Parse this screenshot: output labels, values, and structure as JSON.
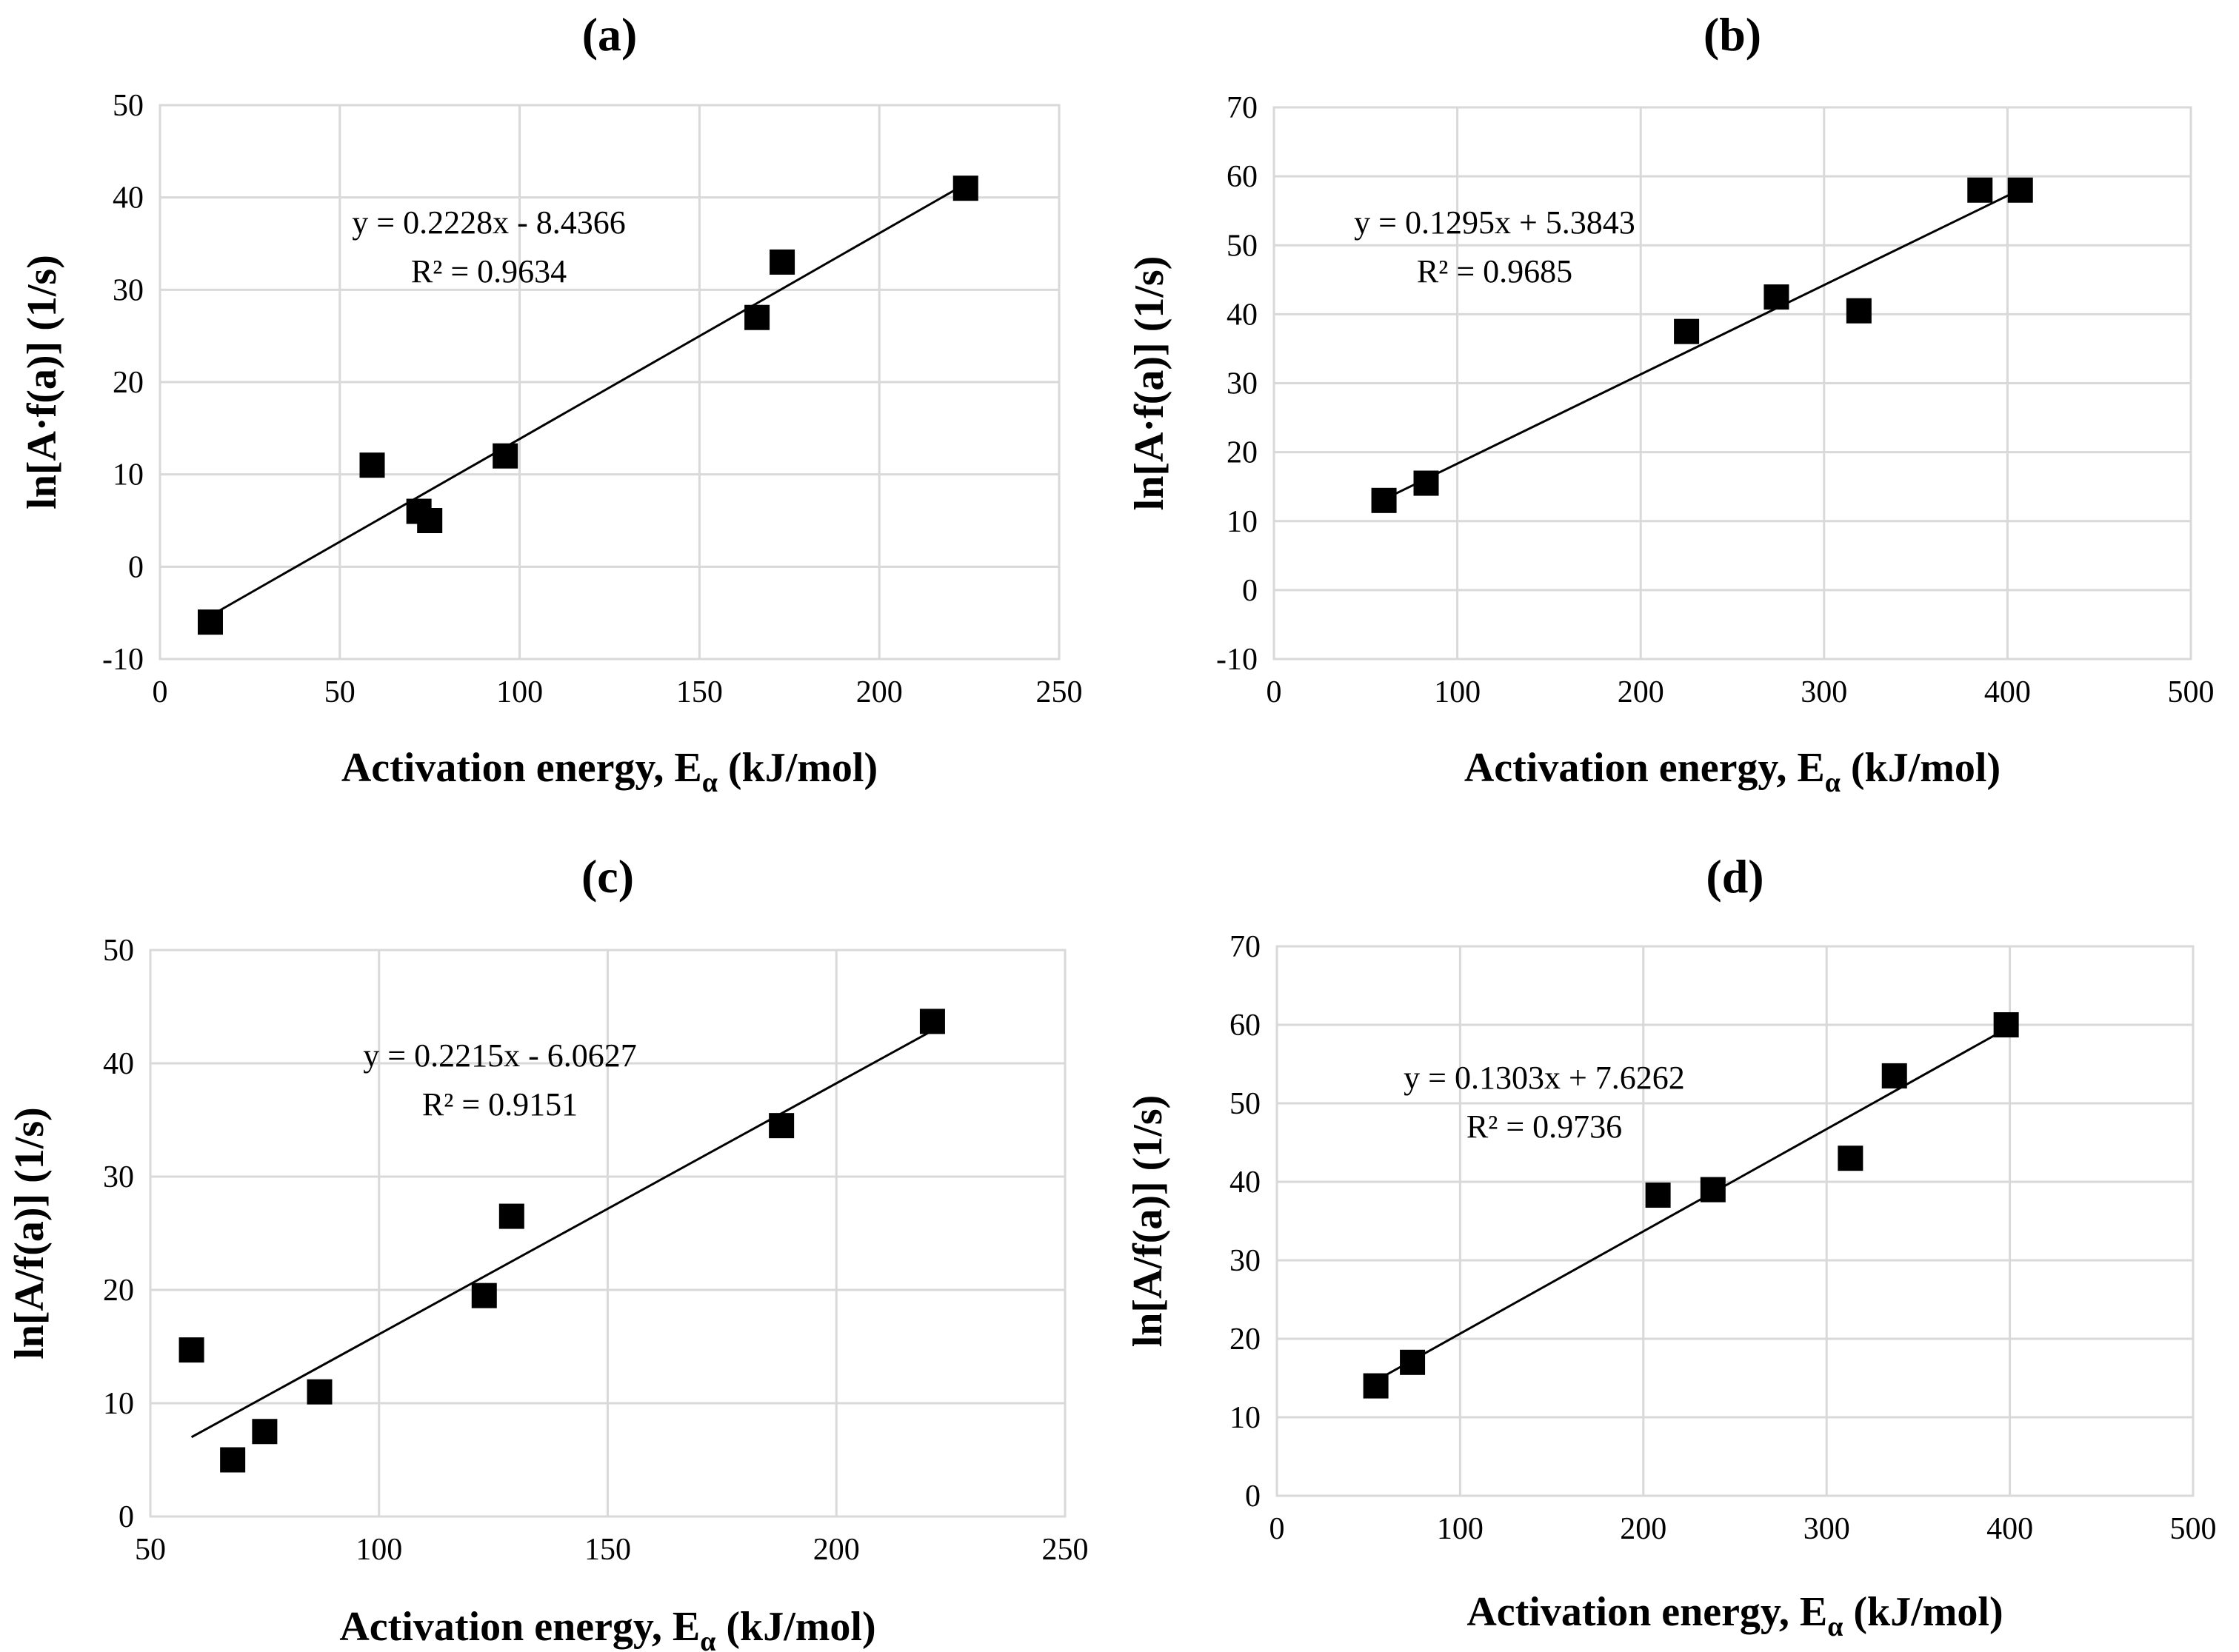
{
  "chart_data": [
    {
      "type": "scatter",
      "title": "(a)",
      "xlabel": "Activation energy, E",
      "xlabel_sub": "α",
      "xlabel_tail": " (kJ/mol)",
      "ylabel": "ln[A·f(a)] (1/s)",
      "xlim": [
        0,
        250
      ],
      "ylim": [
        -10,
        50
      ],
      "xticks": [
        0,
        50,
        100,
        150,
        200,
        250
      ],
      "yticks": [
        -10,
        0,
        10,
        20,
        30,
        40,
        50
      ],
      "x": [
        14,
        59,
        72,
        75,
        96,
        166,
        173,
        224
      ],
      "y": [
        -6,
        11,
        6,
        5,
        12,
        27,
        33,
        41
      ],
      "trendline": {
        "slope": 0.2228,
        "intercept": -8.4366,
        "x_range": [
          14,
          224
        ]
      },
      "equation": "y = 0.2228x - 8.4366",
      "r2": "R² = 0.9634"
    },
    {
      "type": "scatter",
      "title": "(b)",
      "xlabel": "Activation energy, E",
      "xlabel_sub": "α",
      "xlabel_tail": " (kJ/mol)",
      "ylabel": "ln[A·f(a)] (1/s)",
      "xlim": [
        0,
        500
      ],
      "ylim": [
        -10,
        70
      ],
      "xticks": [
        0,
        100,
        200,
        300,
        400,
        500
      ],
      "yticks": [
        -10,
        0,
        10,
        20,
        30,
        40,
        50,
        60,
        70
      ],
      "x": [
        60,
        83,
        225,
        274,
        319,
        385,
        407
      ],
      "y": [
        13,
        15.5,
        37.5,
        42.5,
        40.5,
        58,
        58
      ],
      "trendline": {
        "slope": 0.1295,
        "intercept": 5.3843,
        "x_range": [
          60,
          407
        ]
      },
      "equation": "y = 0.1295x + 5.3843",
      "r2": "R² = 0.9685"
    },
    {
      "type": "scatter",
      "title": "(c)",
      "xlabel": "Activation energy, E",
      "xlabel_sub": "α",
      "xlabel_tail": " (kJ/mol)",
      "ylabel": "ln[A/f(a)] (1/s)",
      "xlim": [
        50,
        250
      ],
      "ylim": [
        0,
        50
      ],
      "xticks": [
        50,
        100,
        150,
        200,
        250
      ],
      "yticks": [
        0,
        10,
        20,
        30,
        40,
        50
      ],
      "x": [
        59,
        68,
        75,
        87,
        123,
        129,
        188,
        221
      ],
      "y": [
        14.7,
        5,
        7.5,
        11,
        19.5,
        26.5,
        34.5,
        43.7
      ],
      "trendline": {
        "slope": 0.2215,
        "intercept": -6.0627,
        "x_range": [
          59,
          221
        ]
      },
      "equation": "y = 0.2215x - 6.0627",
      "r2": "R² = 0.9151"
    },
    {
      "type": "scatter",
      "title": "(d)",
      "xlabel": "Activation energy, E",
      "xlabel_sub": "α",
      "xlabel_tail": " (kJ/mol)",
      "ylabel": "ln[A/f(a)] (1/s)",
      "xlim": [
        0,
        500
      ],
      "ylim": [
        0,
        70
      ],
      "xticks": [
        0,
        100,
        200,
        300,
        400,
        500
      ],
      "yticks": [
        0,
        10,
        20,
        30,
        40,
        50,
        60,
        70
      ],
      "x": [
        54,
        74,
        208,
        238,
        313,
        337,
        398
      ],
      "y": [
        14,
        17,
        38.3,
        39,
        43,
        53.5,
        60
      ],
      "trendline": {
        "slope": 0.1303,
        "intercept": 7.6262,
        "x_range": [
          54,
          398
        ]
      },
      "equation": "y = 0.1303x + 7.6262",
      "r2": "R² = 0.9736"
    }
  ]
}
